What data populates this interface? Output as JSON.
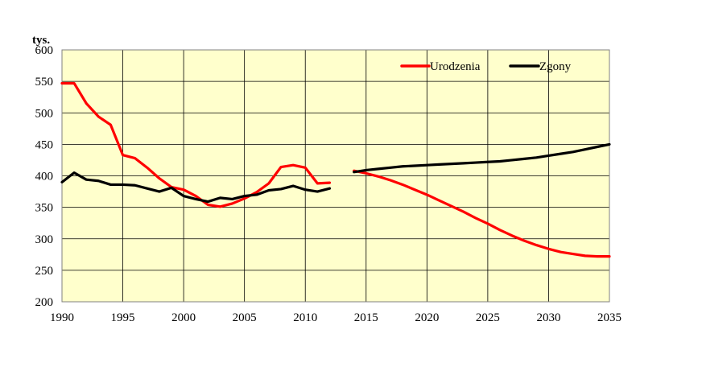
{
  "chart_data": {
    "type": "line",
    "title": "",
    "xlabel": "",
    "ylabel": "tys.",
    "xlim": [
      1990,
      2035
    ],
    "ylim": [
      200,
      600
    ],
    "grid": true,
    "legend_position": "top-right",
    "x_ticks": [
      1990,
      1995,
      2000,
      2005,
      2010,
      2015,
      2020,
      2025,
      2030,
      2035
    ],
    "y_ticks": [
      200,
      250,
      300,
      350,
      400,
      450,
      500,
      550,
      600
    ],
    "background_color": "#ffffcc",
    "series": [
      {
        "name": "Urodzenia",
        "color": "#ff0000",
        "segments": [
          [
            [
              1990,
              547
            ],
            [
              1991,
              547
            ],
            [
              1992,
              515
            ],
            [
              1993,
              494
            ],
            [
              1994,
              481
            ],
            [
              1995,
              433
            ],
            [
              1996,
              428
            ],
            [
              1997,
              413
            ],
            [
              1998,
              396
            ],
            [
              1999,
              382
            ],
            [
              2000,
              378
            ],
            [
              2001,
              368
            ],
            [
              2002,
              354
            ],
            [
              2003,
              351
            ],
            [
              2004,
              356
            ],
            [
              2005,
              364
            ],
            [
              2006,
              374
            ],
            [
              2007,
              388
            ],
            [
              2008,
              414
            ],
            [
              2009,
              417
            ],
            [
              2010,
              413
            ],
            [
              2011,
              388
            ],
            [
              2012,
              389
            ]
          ],
          [
            [
              2014,
              408
            ],
            [
              2015,
              404
            ],
            [
              2016,
              399
            ],
            [
              2017,
              393
            ],
            [
              2018,
              386
            ],
            [
              2019,
              378
            ],
            [
              2020,
              370
            ],
            [
              2021,
              361
            ],
            [
              2022,
              352
            ],
            [
              2023,
              343
            ],
            [
              2024,
              333
            ],
            [
              2025,
              324
            ],
            [
              2026,
              314
            ],
            [
              2027,
              305
            ],
            [
              2028,
              297
            ],
            [
              2029,
              290
            ],
            [
              2030,
              284
            ],
            [
              2031,
              279
            ],
            [
              2032,
              276
            ],
            [
              2033,
              273
            ],
            [
              2034,
              272
            ],
            [
              2035,
              272
            ]
          ]
        ]
      },
      {
        "name": "Zgony",
        "color": "#000000",
        "segments": [
          [
            [
              1990,
              390
            ],
            [
              1991,
              405
            ],
            [
              1992,
              394
            ],
            [
              1993,
              392
            ],
            [
              1994,
              386
            ],
            [
              1995,
              386
            ],
            [
              1996,
              385
            ],
            [
              1997,
              380
            ],
            [
              1998,
              375
            ],
            [
              1999,
              381
            ],
            [
              2000,
              368
            ],
            [
              2001,
              363
            ],
            [
              2002,
              359
            ],
            [
              2003,
              365
            ],
            [
              2004,
              363
            ],
            [
              2005,
              368
            ],
            [
              2006,
              370
            ],
            [
              2007,
              377
            ],
            [
              2008,
              379
            ],
            [
              2009,
              384
            ],
            [
              2010,
              378
            ],
            [
              2011,
              375
            ],
            [
              2012,
              380
            ]
          ],
          [
            [
              2014,
              406
            ],
            [
              2015,
              409
            ],
            [
              2016,
              411
            ],
            [
              2017,
              413
            ],
            [
              2018,
              415
            ],
            [
              2019,
              416
            ],
            [
              2020,
              417
            ],
            [
              2021,
              418
            ],
            [
              2022,
              419
            ],
            [
              2023,
              420
            ],
            [
              2024,
              421
            ],
            [
              2025,
              422
            ],
            [
              2026,
              423
            ],
            [
              2027,
              425
            ],
            [
              2028,
              427
            ],
            [
              2029,
              429
            ],
            [
              2030,
              432
            ],
            [
              2031,
              435
            ],
            [
              2032,
              438
            ],
            [
              2033,
              442
            ],
            [
              2034,
              446
            ],
            [
              2035,
              450
            ]
          ]
        ]
      }
    ]
  }
}
